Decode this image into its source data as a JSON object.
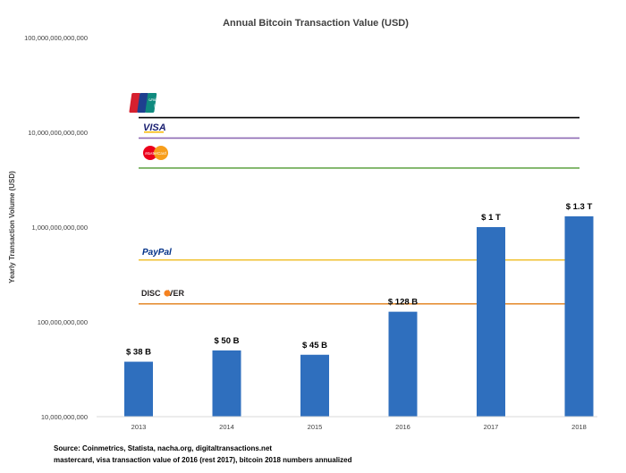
{
  "chart_data": {
    "type": "bar",
    "title": "Annual Bitcoin Transaction Value (USD)",
    "ylabel": "Yearly Transaction Volume (USD)",
    "xlabel": "",
    "y_scale": "log",
    "ylim": [
      10000000000,
      100000000000000
    ],
    "y_ticks": [
      {
        "value": 10000000000,
        "label": "10,000,000,000"
      },
      {
        "value": 100000000000,
        "label": "100,000,000,000"
      },
      {
        "value": 1000000000000,
        "label": "1,000,000,000,000"
      },
      {
        "value": 10000000000000,
        "label": "10,000,000,000,000"
      },
      {
        "value": 100000000000000,
        "label": "100,000,000,000,000"
      }
    ],
    "categories": [
      "2013",
      "2014",
      "2015",
      "2016",
      "2017",
      "2018"
    ],
    "values": [
      38000000000,
      50000000000,
      45000000000,
      128000000000,
      1000000000000,
      1300000000000
    ],
    "data_labels": [
      "$ 38 B",
      "$ 50 B",
      "$ 45 B",
      "$ 128 B",
      "$ 1 T",
      "$ 1.3 T"
    ],
    "bar_color": "#2f6fbe",
    "grid": false,
    "reference_lines": [
      {
        "name": "UnionPay",
        "logo": "unionpay-logo",
        "value": 14300000000000,
        "color": "#000000"
      },
      {
        "name": "VISA",
        "logo": "visa-logo",
        "value": 8700000000000,
        "color": "#8e6bb5"
      },
      {
        "name": "MasterCard",
        "logo": "mastercard-logo",
        "value": 4200000000000,
        "color": "#6aa84f"
      },
      {
        "name": "PayPal",
        "logo": "paypal-logo",
        "value": 450000000000,
        "color": "#f1c232"
      },
      {
        "name": "DISCOVER",
        "logo": "discover-logo",
        "value": 155000000000,
        "color": "#e69138"
      }
    ]
  },
  "logos": {
    "unionpay": {
      "top_text": "UnionPay",
      "bottom_text": "银联"
    },
    "visa": {
      "text": "VISA"
    },
    "mastercard": {
      "text": "MasterCard"
    },
    "paypal": {
      "text": "PayPal"
    },
    "discover": {
      "text_before": "DISC",
      "text_after": "VER"
    }
  },
  "footer": {
    "source": "Source: Coinmetrics, Statista, nacha.org, digitaltransactions.net",
    "note": "mastercard, visa transaction value of 2016 (rest 2017), bitcoin 2018 numbers annualized"
  }
}
